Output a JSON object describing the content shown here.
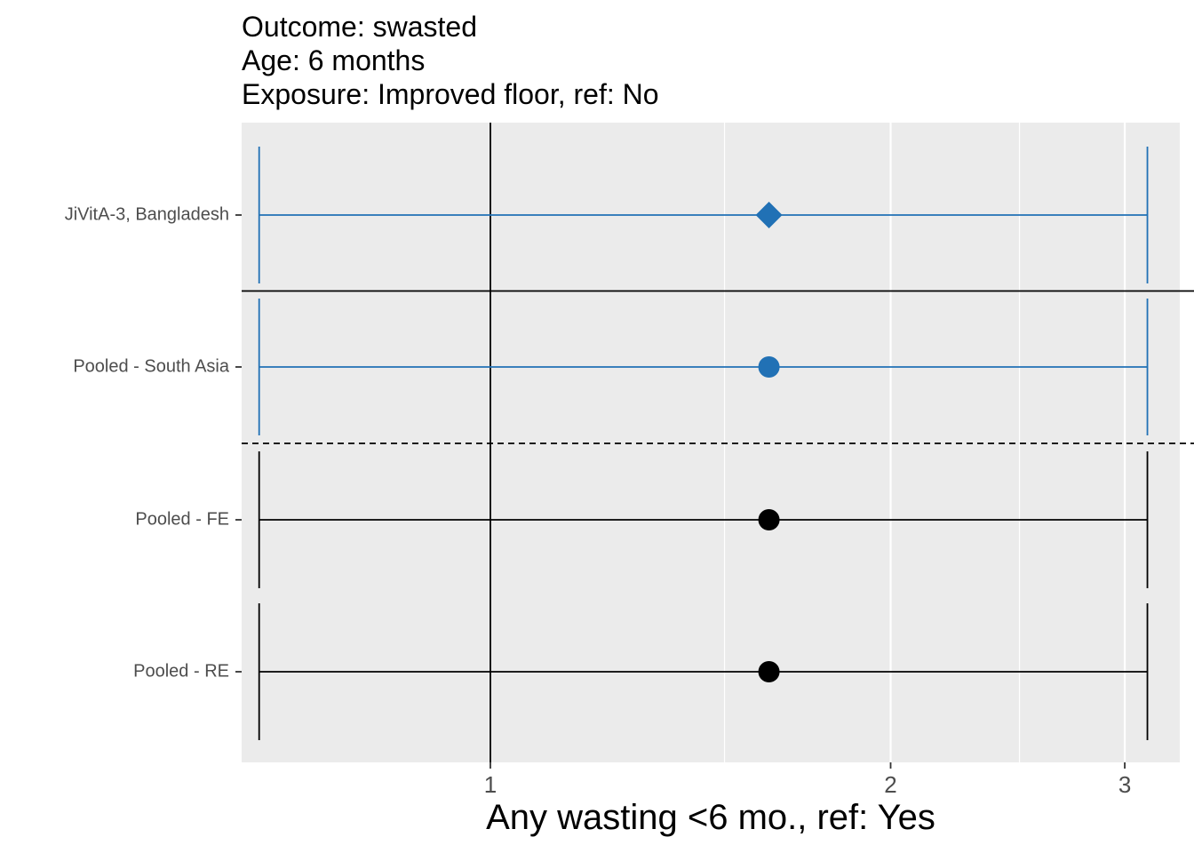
{
  "chart_data": {
    "type": "forest",
    "title_lines": [
      "Outcome: swasted",
      "Age: 6 months",
      "Exposure: Improved floor, ref: No"
    ],
    "xlabel": "Any wasting  <6 mo., ref: Yes",
    "x_scale": "log",
    "xlim": [
      0.65,
      3.3
    ],
    "x_ticks": [
      1,
      2,
      3
    ],
    "x_minor": [
      1.5,
      2.5
    ],
    "reference_line": 1,
    "rows": [
      {
        "label": "JiVitA-3, Bangladesh",
        "estimate": 1.62,
        "ci_lower": 0.67,
        "ci_upper": 3.12,
        "shape": "diamond",
        "color": "#2171b5"
      },
      {
        "label": "Pooled - South Asia",
        "estimate": 1.62,
        "ci_lower": 0.67,
        "ci_upper": 3.12,
        "shape": "circle",
        "color": "#2171b5"
      },
      {
        "label": "Pooled - FE",
        "estimate": 1.62,
        "ci_lower": 0.67,
        "ci_upper": 3.12,
        "shape": "circle",
        "color": "#000000"
      },
      {
        "label": "Pooled - RE",
        "estimate": 1.62,
        "ci_lower": 0.67,
        "ci_upper": 3.12,
        "shape": "circle",
        "color": "#000000"
      }
    ],
    "separators": [
      {
        "after_row": 0,
        "style": "solid"
      },
      {
        "after_row": 1,
        "style": "dashed"
      }
    ],
    "panel_background": "#ebebeb",
    "grid_color": "#ffffff"
  }
}
